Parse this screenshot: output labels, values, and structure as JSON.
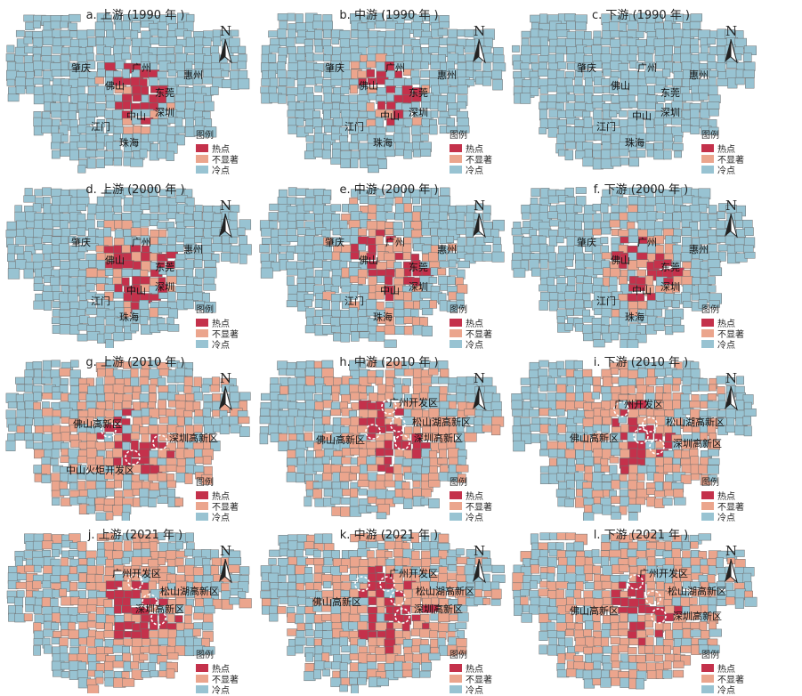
{
  "colors": {
    "hot": "#c4314b",
    "insignificant": "#eba58d",
    "cold": "#98c3d2",
    "border": "#6f6f6f",
    "ring": "#ffffff"
  },
  "legend": {
    "title": "图例",
    "items": [
      {
        "key": "hot",
        "label": "热点"
      },
      {
        "key": "insignificant",
        "label": "不显著"
      },
      {
        "key": "cold",
        "label": "冷点"
      }
    ]
  },
  "north_letter": "N",
  "panels": [
    {
      "id": "a",
      "title": "a. 上游 (1990 年 )",
      "zones": [],
      "cities": [
        "肇庆",
        "广州",
        "惠州",
        "佛山",
        "东莞",
        "中山",
        "深圳",
        "江门",
        "珠海"
      ],
      "dist": {
        "hot": 0.05,
        "insig": 0.04
      }
    },
    {
      "id": "b",
      "title": "b. 中游 (1990 年 )",
      "zones": [],
      "cities": [
        "肇庆",
        "广州",
        "惠州",
        "佛山",
        "东莞",
        "中山",
        "深圳",
        "江门",
        "珠海"
      ],
      "dist": {
        "hot": 0.03,
        "insig": 0.03
      }
    },
    {
      "id": "c",
      "title": "c. 下游 (1990 年 )",
      "zones": [],
      "cities": [
        "肇庆",
        "广州",
        "惠州",
        "佛山",
        "东莞",
        "中山",
        "深圳",
        "江门",
        "珠海"
      ],
      "dist": {
        "hot": 0.0,
        "insig": 0.0
      }
    },
    {
      "id": "d",
      "title": "d. 上游 (2000 年 )",
      "zones": [],
      "cities": [
        "肇庆",
        "广州",
        "惠州",
        "佛山",
        "东莞",
        "中山",
        "深圳",
        "江门",
        "珠海"
      ],
      "dist": {
        "hot": 0.07,
        "insig": 0.1
      }
    },
    {
      "id": "e",
      "title": "e. 中游 (2000 年 )",
      "zones": [],
      "cities": [
        "肇庆",
        "广州",
        "惠州",
        "佛山",
        "东莞",
        "中山",
        "深圳",
        "江门",
        "珠海"
      ],
      "dist": {
        "hot": 0.08,
        "insig": 0.22
      }
    },
    {
      "id": "f",
      "title": "f. 下游 (2000 年 )",
      "zones": [],
      "cities": [
        "肇庆",
        "广州",
        "惠州",
        "佛山",
        "东莞",
        "中山",
        "深圳",
        "江门",
        "珠海"
      ],
      "dist": {
        "hot": 0.05,
        "insig": 0.1
      }
    },
    {
      "id": "g",
      "title": "g. 上游 (2010 年 )",
      "zones": [
        "佛山高新区",
        "深圳高新区",
        "中山火炬开发区"
      ],
      "cities": [],
      "dist": {
        "hot": 0.08,
        "insig": 0.5
      }
    },
    {
      "id": "h",
      "title": "h. 中游 (2010 年 )",
      "zones": [
        "广州开发区",
        "松山湖高新区",
        "佛山高新区",
        "深圳高新区"
      ],
      "cities": [],
      "dist": {
        "hot": 0.1,
        "insig": 0.45
      }
    },
    {
      "id": "i",
      "title": "i. 下游 (2010 年 )",
      "zones": [
        "广州开发区",
        "松山湖高新区",
        "佛山高新区",
        "深圳高新区"
      ],
      "cities": [],
      "dist": {
        "hot": 0.06,
        "insig": 0.4
      }
    },
    {
      "id": "j",
      "title": "j. 上游 (2021 年 )",
      "zones": [
        "广州开发区",
        "松山湖高新区",
        "深圳高新区"
      ],
      "cities": [],
      "dist": {
        "hot": 0.09,
        "insig": 0.5
      }
    },
    {
      "id": "k",
      "title": "k. 中游 (2021 年 )",
      "zones": [
        "广州开发区",
        "松山湖高新区",
        "佛山高新区",
        "深圳高新区"
      ],
      "cities": [],
      "dist": {
        "hot": 0.14,
        "insig": 0.5
      }
    },
    {
      "id": "l",
      "title": "l. 下游 (2021 年 )",
      "zones": [
        "广州开发区",
        "松山湖高新区",
        "佛山高新区",
        "深圳高新区"
      ],
      "cities": [],
      "dist": {
        "hot": 0.06,
        "insig": 0.55
      }
    }
  ]
}
